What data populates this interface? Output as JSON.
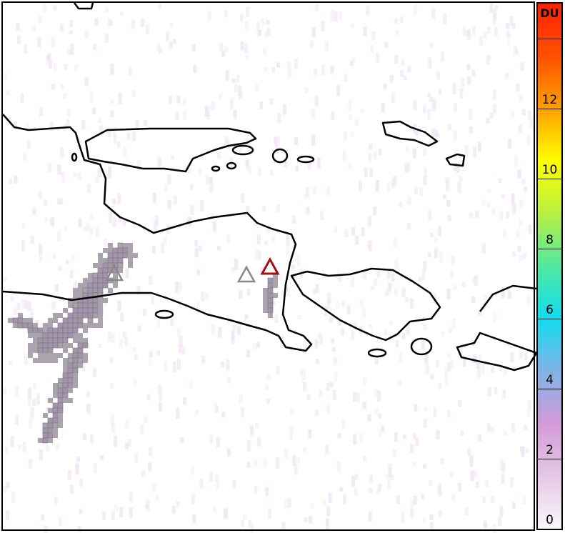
{
  "map": {
    "border_color": "#000000",
    "coastline_color": "#000000",
    "plume_cell_color": "#a9a4ae",
    "background_noise_color": "#f1e6f5",
    "volcano_markers": [
      {
        "name": "volcano-marker-west",
        "stroke": "#888888"
      },
      {
        "name": "volcano-marker-center",
        "stroke": "#888888"
      },
      {
        "name": "volcano-marker-active",
        "stroke": "#a01010"
      }
    ]
  },
  "colorbar": {
    "unit_label": "DU",
    "range": [
      0,
      15
    ],
    "tick_values": [
      0,
      2,
      4,
      6,
      8,
      10,
      12,
      14
    ],
    "tick_labels": [
      "0",
      "2",
      "4",
      "6",
      "8",
      "10",
      "12",
      ""
    ],
    "colors": [
      "#fbf6fb",
      "#e6c8e6",
      "#d39ad8",
      "#80b3e6",
      "#12dcf0",
      "#50e8a0",
      "#b8f040",
      "#ffff00",
      "#ffa000",
      "#ff5000",
      "#ff2000"
    ]
  }
}
